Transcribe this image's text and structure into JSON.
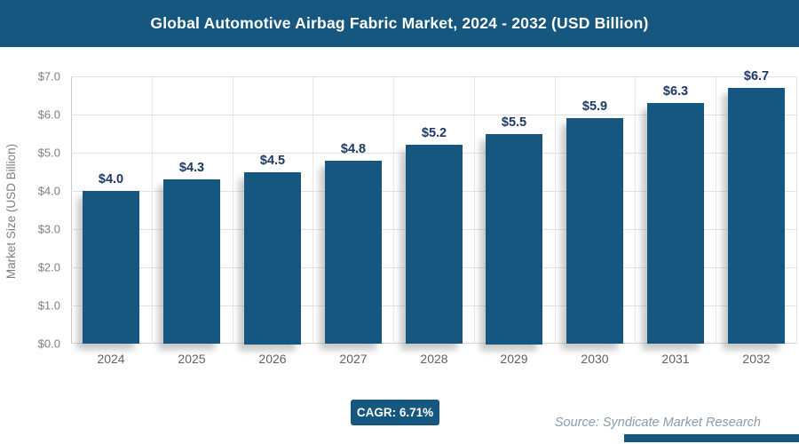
{
  "header": {
    "title": "Global Automotive Airbag Fabric Market, 2024 - 2032 (USD Billion)"
  },
  "chart_data": {
    "type": "bar",
    "title": "Global Automotive Airbag Fabric Market, 2024 - 2032 (USD Billion)",
    "categories": [
      "2024",
      "2025",
      "2026",
      "2027",
      "2028",
      "2029",
      "2030",
      "2031",
      "2032"
    ],
    "values": [
      4.0,
      4.3,
      4.5,
      4.8,
      5.2,
      5.5,
      5.9,
      6.3,
      6.7
    ],
    "bar_labels": [
      "$4.0",
      "$4.3",
      "$4.5",
      "$4.8",
      "$5.2",
      "$5.5",
      "$5.9",
      "$6.3",
      "$6.7"
    ],
    "xlabel": "",
    "ylabel": "Market Size (USD Billion)",
    "ylim": [
      0,
      7
    ],
    "ytick_labels": [
      "$0.0",
      "$1.0",
      "$2.0",
      "$3.0",
      "$4.0",
      "$5.0",
      "$6.0",
      "$7.0"
    ],
    "grid": "horizontal and vertical light gray gridlines",
    "legend": "none",
    "bar_color": "#15577E",
    "value_label_color": "#1F3864"
  },
  "footer": {
    "cagr_label": "CAGR: 6.71%",
    "source": "Source: Syndicate Market Research"
  },
  "colors": {
    "header_background": "#15577E",
    "bar": "#15577E",
    "gridline": "#e2e2e2",
    "tick_text": "#7f7f7f",
    "source_text": "#8C9BA6"
  }
}
